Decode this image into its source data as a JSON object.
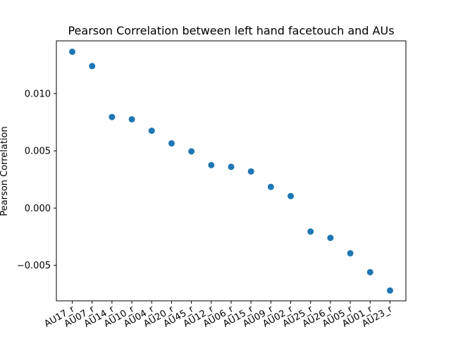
{
  "chart_data": {
    "type": "scatter",
    "title": "Pearson Correlation between left hand facetouch and AUs",
    "xlabel": "",
    "ylabel": "Pearson Correlation",
    "categories": [
      "AU17_r",
      "AU07_r",
      "AU14_r",
      "AU10_r",
      "AU04_r",
      "AU20_r",
      "AU45_r",
      "AU12_r",
      "AU06_r",
      "AU15_r",
      "AU09_r",
      "AU02_r",
      "AU25_r",
      "AU26_r",
      "AU05_r",
      "AU01_r",
      "AU23_r"
    ],
    "values": [
      0.01365,
      0.0124,
      0.00795,
      0.00775,
      0.00675,
      0.00565,
      0.00495,
      0.00375,
      0.0036,
      0.0032,
      0.00185,
      0.00105,
      -0.00205,
      -0.0026,
      -0.00395,
      -0.0056,
      -0.0072
    ],
    "ylim": [
      -0.0081,
      0.0146
    ],
    "yticks": [
      -0.005,
      0.0,
      0.005,
      0.01
    ],
    "ytick_labels": [
      "−0.005",
      "0.000",
      "0.005",
      "0.010"
    ],
    "marker_color": "#1f77b4",
    "grid": false,
    "legend": "none"
  }
}
